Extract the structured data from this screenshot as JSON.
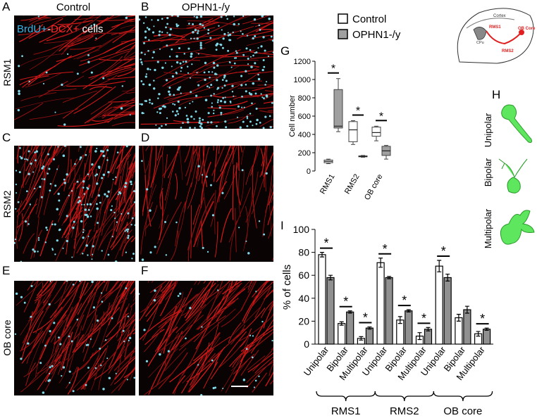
{
  "images": {
    "panel_letters": [
      "A",
      "B",
      "C",
      "D",
      "E",
      "F"
    ],
    "column_titles": [
      "Control",
      "OPHN1-/y"
    ],
    "row_labels": [
      "RSM1",
      "RSM2",
      "OB core"
    ],
    "overlay": [
      {
        "text": "BrdU+",
        "color": "#35b6e8"
      },
      {
        "text": "-",
        "color": "#ffffff"
      },
      {
        "text": "DCX+",
        "color": "#ff2a2a"
      },
      {
        "text": " cells",
        "color": "#ffffff"
      }
    ]
  },
  "schematic": {
    "labels": [
      "Cortex",
      "CPu",
      "RMS1",
      "RMS2",
      "OB Core"
    ]
  },
  "morphology": {
    "letter": "H",
    "labels": [
      "Unipolar",
      "Bipolar",
      "Multipolar"
    ]
  },
  "chart_data": [
    {
      "type": "box",
      "letter": "G",
      "y_label": "Cell number",
      "categories": [
        "RMS1",
        "RMS2",
        "OB core"
      ],
      "ylim": [
        0,
        1200
      ],
      "yticks": [
        0,
        200,
        400,
        600,
        800,
        1000,
        1200
      ],
      "series": [
        {
          "name": "Control",
          "color": "#ffffff",
          "boxes": [
            {
              "min": 80,
              "q1": 90,
              "median": 105,
              "q3": 120,
              "max": 130
            },
            {
              "min": 290,
              "q1": 320,
              "median": 450,
              "q3": 540,
              "max": 550
            },
            {
              "min": 330,
              "q1": 380,
              "median": 420,
              "q3": 480,
              "max": 490
            }
          ]
        },
        {
          "name": "OPHN1-/y",
          "color": "#a0a0a0",
          "boxes": [
            {
              "min": 430,
              "q1": 470,
              "median": 490,
              "q3": 890,
              "max": 1010
            },
            {
              "min": 150,
              "q1": 155,
              "median": 160,
              "q3": 165,
              "max": 170
            },
            {
              "min": 130,
              "q1": 170,
              "median": 220,
              "q3": 270,
              "max": 280
            }
          ]
        }
      ],
      "significance": [
        "*",
        "*",
        "*"
      ]
    },
    {
      "type": "bar",
      "letter": "I",
      "y_label": "% of cells",
      "categories": [
        "Unipolar",
        "Bipolar",
        "Multipolar",
        "Unipolar",
        "Bipolar",
        "Multipolar",
        "Unipolar",
        "Bipolar",
        "Multipolar"
      ],
      "groups": [
        "RMS1",
        "RMS2",
        "OB core"
      ],
      "ylim": [
        0,
        100
      ],
      "yticks": [
        0,
        20,
        40,
        60,
        80,
        100
      ],
      "series": [
        {
          "color": "#ffffff",
          "values": [
            78,
            18,
            5,
            71,
            21,
            7,
            68,
            23,
            9
          ],
          "errors": [
            2,
            1.5,
            1.5,
            4,
            3,
            3,
            5,
            3,
            2
          ]
        },
        {
          "color": "#909090",
          "values": [
            58,
            28,
            14,
            58,
            29,
            13,
            58,
            30,
            13
          ],
          "errors": [
            2,
            1,
            1,
            1,
            1,
            1.5,
            3,
            3,
            1
          ]
        }
      ],
      "significance": [
        "*",
        "*",
        "*",
        "*",
        "*",
        "*",
        "*",
        null,
        "*"
      ]
    }
  ]
}
